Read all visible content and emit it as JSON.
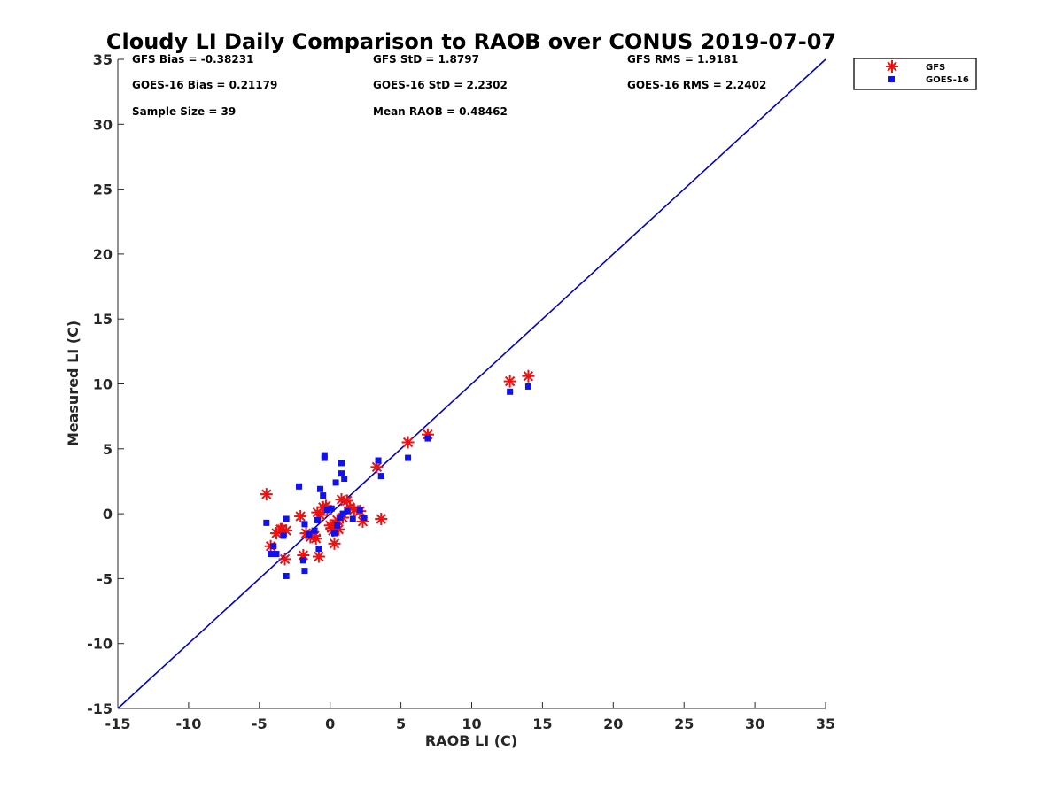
{
  "chart_data": {
    "type": "scatter",
    "title": "Cloudy LI Daily Comparison to RAOB over CONUS 2019-07-07",
    "xlabel": "RAOB LI (C)",
    "ylabel": "Measured LI (C)",
    "xlim": [
      -15,
      35
    ],
    "ylim": [
      -15,
      35
    ],
    "xticks": [
      "-15",
      "-10",
      "-5",
      "0",
      "5",
      "10",
      "15",
      "20",
      "25",
      "30",
      "35"
    ],
    "yticks": [
      "-15",
      "-10",
      "-5",
      "0",
      "5",
      "10",
      "15",
      "20",
      "25",
      "30",
      "35"
    ],
    "grid": false,
    "legend_position": "outside-top-right",
    "stats": [
      "GFS Bias = -0.38231",
      "GFS StD = 1.8797",
      "GFS RMS = 1.9181",
      "GOES-16 Bias = 0.21179",
      "GOES-16 StD = 2.2302",
      "GOES-16 RMS = 2.2402",
      "Sample Size = 39",
      "Mean RAOB = 0.48462"
    ],
    "reference_line": {
      "x": [
        -15,
        35
      ],
      "y": [
        -15,
        35
      ],
      "color": "#0000cc"
    },
    "series": [
      {
        "name": "GFS",
        "marker": "asterisk",
        "color": "#ee1111",
        "x": [
          -4.5,
          -4.2,
          -3.8,
          -3.5,
          -3.2,
          -3.1,
          -2.1,
          -1.9,
          -1.7,
          -1.4,
          -1.1,
          -0.9,
          -0.8,
          -0.5,
          -0.3,
          0.0,
          0.1,
          0.3,
          0.5,
          0.6,
          0.8,
          0.9,
          1.2,
          1.4,
          1.7,
          2.1,
          2.3,
          3.3,
          3.6,
          5.5,
          6.9,
          12.7,
          14.0,
          -0.7,
          -1.0,
          0.2,
          -0.2,
          0.4,
          -3.4
        ],
        "y": [
          1.5,
          -2.5,
          -1.5,
          -1.2,
          -3.5,
          -1.3,
          -0.2,
          -3.2,
          -1.5,
          -1.8,
          -1.7,
          0.1,
          -3.3,
          0.5,
          0.6,
          -0.9,
          -1.1,
          -2.3,
          -0.5,
          -1.2,
          1.1,
          -0.3,
          1.0,
          0.5,
          0.3,
          0.2,
          -0.6,
          3.6,
          -0.4,
          5.5,
          6.1,
          10.2,
          10.6,
          -0.1,
          -1.9,
          -1.3,
          0.3,
          -0.8,
          -1.2
        ]
      },
      {
        "name": "GOES-16",
        "marker": "square",
        "color": "#1111ee",
        "x": [
          -4.5,
          -4.2,
          -4.0,
          -3.8,
          -3.3,
          -3.1,
          -3.1,
          -2.2,
          -1.9,
          -1.8,
          -1.8,
          -1.5,
          -1.1,
          -0.9,
          -0.8,
          -0.7,
          -0.5,
          -0.4,
          -0.4,
          -0.2,
          0.1,
          0.3,
          0.4,
          0.5,
          0.7,
          0.8,
          0.8,
          0.9,
          1.0,
          1.2,
          1.6,
          2.1,
          2.4,
          3.4,
          3.6,
          5.5,
          6.9,
          12.7,
          14.0
        ],
        "y": [
          -0.7,
          -3.1,
          -2.5,
          -3.1,
          -1.7,
          -4.8,
          -0.4,
          2.1,
          -3.6,
          -4.4,
          -0.8,
          -1.6,
          -1.3,
          -0.5,
          -2.7,
          1.9,
          1.4,
          4.5,
          4.3,
          0.3,
          0.4,
          -1.5,
          2.4,
          -0.9,
          -0.3,
          3.9,
          3.1,
          0.0,
          2.7,
          0.2,
          -0.4,
          0.3,
          -0.3,
          4.1,
          2.9,
          4.3,
          5.8,
          9.4,
          9.8
        ]
      }
    ]
  }
}
